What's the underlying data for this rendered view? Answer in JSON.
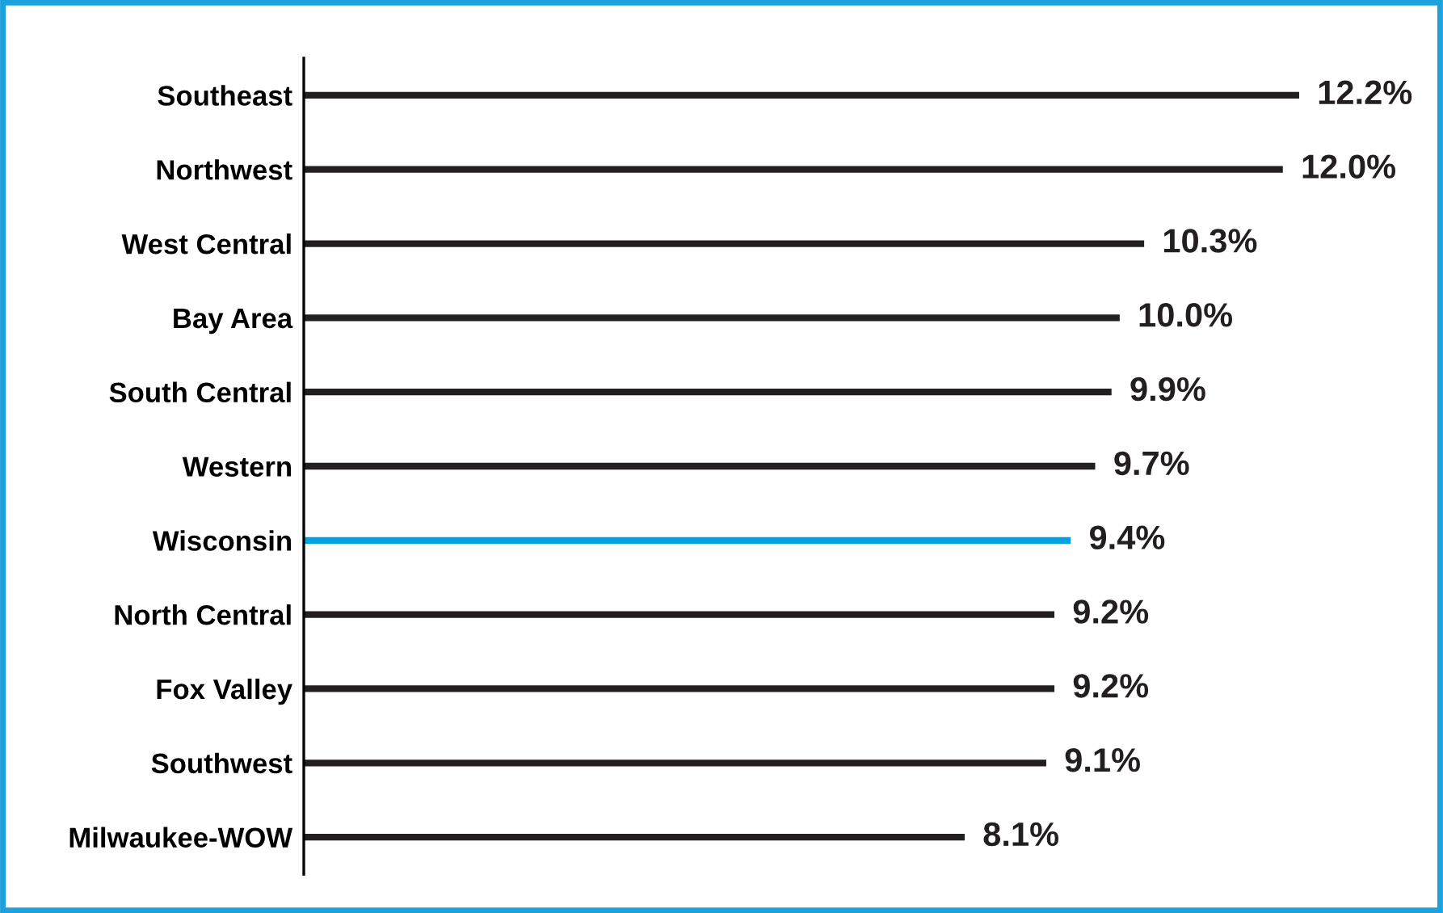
{
  "chart_data": {
    "type": "bar",
    "orientation": "horizontal",
    "categories": [
      "Southeast",
      "Northwest",
      "West Central",
      "Bay Area",
      "South Central",
      "Western",
      "Wisconsin",
      "North Central",
      "Fox Valley",
      "Southwest",
      "Milwaukee-WOW"
    ],
    "values": [
      12.2,
      12.0,
      10.3,
      10.0,
      9.9,
      9.7,
      9.4,
      9.2,
      9.2,
      9.1,
      8.1
    ],
    "colors": [
      "#231f20",
      "#231f20",
      "#231f20",
      "#231f20",
      "#231f20",
      "#231f20",
      "#00a3e0",
      "#231f20",
      "#231f20",
      "#231f20",
      "#231f20"
    ],
    "value_labels": [
      "12.2%",
      "12.0%",
      "10.3%",
      "10.0%",
      "9.9%",
      "9.7%",
      "9.4%",
      "9.2%",
      "9.2%",
      "9.1%",
      "8.1%"
    ],
    "grid": false,
    "legend": false,
    "tick_labels": "y"
  }
}
